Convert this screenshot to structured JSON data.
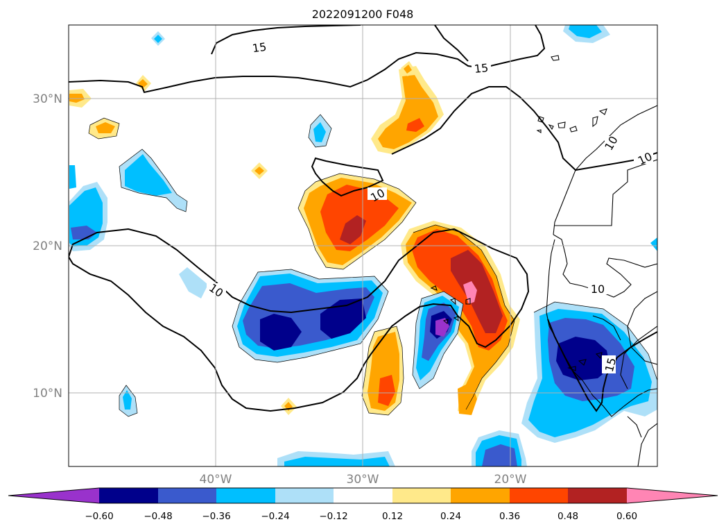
{
  "title": "2022091200 F048",
  "lat_labels": [
    "30°N",
    "20°N",
    "10°N"
  ],
  "lon_labels": [
    "40°W",
    "30°W",
    "20°W"
  ],
  "contour_labels": [
    "15",
    "15",
    "10",
    "10",
    "10",
    "10",
    "15",
    "10"
  ],
  "colorbar": {
    "tick_labels": [
      "−0.60",
      "−0.48",
      "−0.36",
      "−0.24",
      "−0.12",
      "0.12",
      "0.24",
      "0.36",
      "0.48",
      "0.60"
    ],
    "colors": [
      "#9932cc",
      "#00008b",
      "#3a5acd",
      "#00bfff",
      "#aee0f8",
      "#ffffff",
      "#ffe98a",
      "#ffa500",
      "#ff4500",
      "#b22222",
      "#ff85b4"
    ]
  },
  "palette": {
    "land_coast": "#000000",
    "grid": "#b0b0b0"
  }
}
